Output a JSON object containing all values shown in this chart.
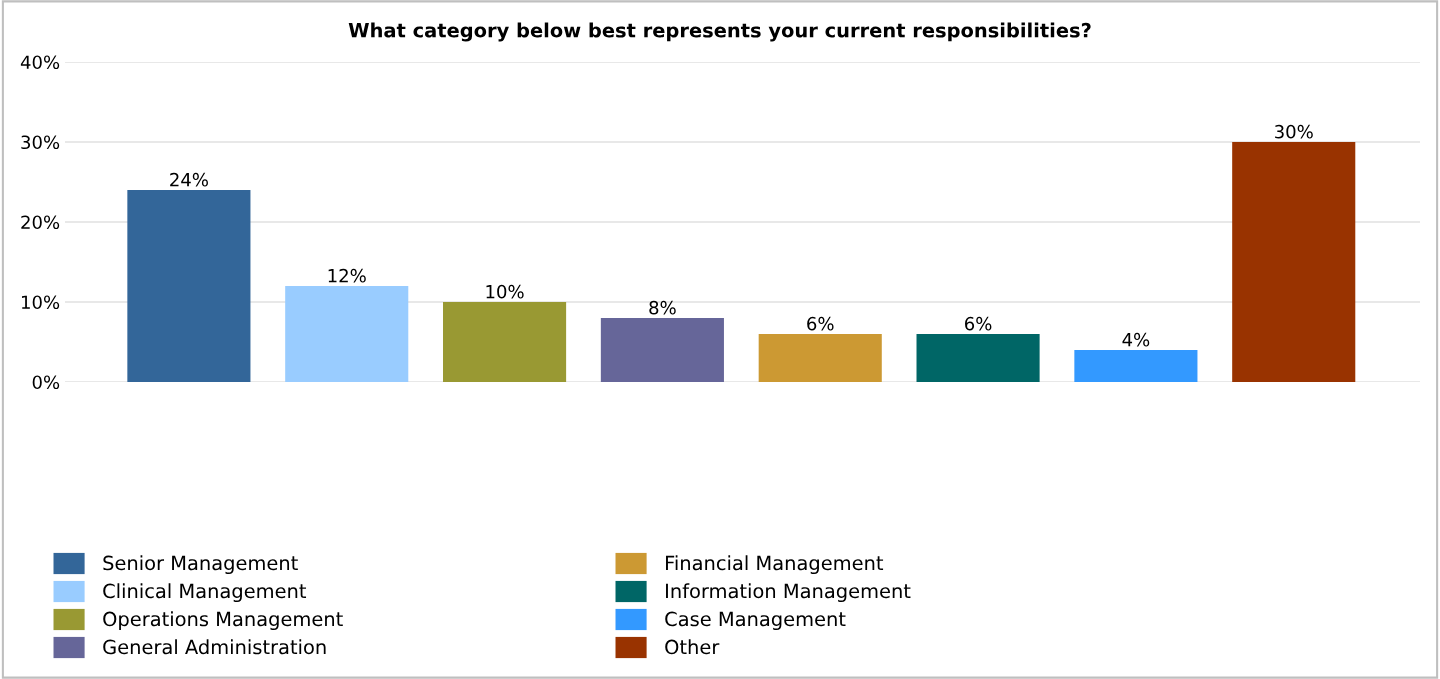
{
  "chart_data": {
    "type": "bar",
    "title": "What category below best represents your current responsibilities?",
    "categories": [
      null
    ],
    "series": [
      {
        "name": "Senior Management",
        "color": "#336699",
        "values": [
          24
        ],
        "value_labels": [
          "24%"
        ]
      },
      {
        "name": "Clinical Management",
        "color": "#99ccff",
        "values": [
          12
        ],
        "value_labels": [
          "12%"
        ]
      },
      {
        "name": "Operations Management",
        "color": "#999933",
        "values": [
          10
        ],
        "value_labels": [
          "10%"
        ]
      },
      {
        "name": "General Administration",
        "color": "#666699",
        "values": [
          8
        ],
        "value_labels": [
          "8%"
        ]
      },
      {
        "name": "Financial Management",
        "color": "#cc9933",
        "values": [
          6
        ],
        "value_labels": [
          "6%"
        ]
      },
      {
        "name": "Information Management",
        "color": "#006666",
        "values": [
          6
        ],
        "value_labels": [
          "6%"
        ]
      },
      {
        "name": "Case Management",
        "color": "#3399ff",
        "values": [
          4
        ],
        "value_labels": [
          "4%"
        ]
      },
      {
        "name": "Other",
        "color": "#993300",
        "values": [
          30
        ],
        "value_labels": [
          "30%"
        ]
      }
    ],
    "ylim": [
      0,
      40
    ],
    "yticks": [
      {
        "value": 0,
        "label": "0%"
      },
      {
        "value": 10,
        "label": "10%"
      },
      {
        "value": 20,
        "label": "20%"
      },
      {
        "value": 30,
        "label": "30%"
      },
      {
        "value": 40,
        "label": "40%"
      }
    ],
    "grid": "y",
    "legend": "bottom left",
    "tick_labels": "y"
  }
}
